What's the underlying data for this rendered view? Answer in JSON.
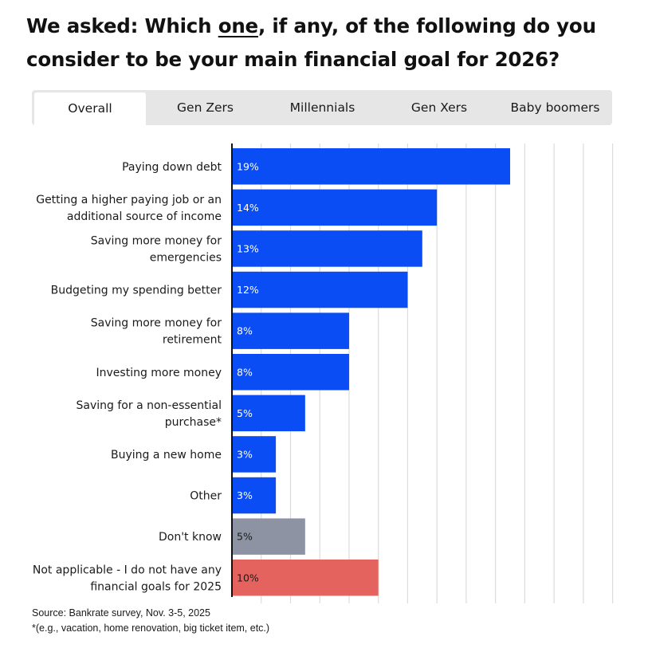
{
  "title": {
    "prefix": "We asked: Which ",
    "emphasis": "one",
    "suffix": ", if any, of the following do you consider to be your main financial goal for 2026?"
  },
  "tabs": [
    {
      "label": "Overall",
      "active": true
    },
    {
      "label": "Gen Zers",
      "active": false
    },
    {
      "label": "Millennials",
      "active": false
    },
    {
      "label": "Gen Xers",
      "active": false
    },
    {
      "label": "Baby boomers",
      "active": false
    }
  ],
  "chart_data": {
    "type": "bar",
    "orientation": "horizontal",
    "xlim": [
      0,
      26
    ],
    "gridlines": true,
    "series": [
      {
        "name": "Overall",
        "values": [
          19,
          14,
          13,
          12,
          8,
          8,
          5,
          3,
          3,
          5,
          10
        ],
        "value_labels": [
          "19%",
          "14%",
          "13%",
          "12%",
          "8%",
          "8%",
          "5%",
          "3%",
          "3%",
          "5%",
          "10%"
        ]
      }
    ],
    "categories": [
      [
        "Paying down debt"
      ],
      [
        "Getting a higher paying job or an",
        "additional source of income"
      ],
      [
        "Saving more money for",
        "emergencies"
      ],
      [
        "Budgeting my spending better"
      ],
      [
        "Saving more money for",
        "retirement"
      ],
      [
        "Investing more money"
      ],
      [
        "Saving for a non-essential",
        "purchase*"
      ],
      [
        "Buying a new home"
      ],
      [
        "Other"
      ],
      [
        "Don't know"
      ],
      [
        "Not applicable - I do not have any",
        "financial goals for 2025"
      ]
    ],
    "bar_colors": [
      "#0a4df5",
      "#0a4df5",
      "#0a4df5",
      "#0a4df5",
      "#0a4df5",
      "#0a4df5",
      "#0a4df5",
      "#0a4df5",
      "#0a4df5",
      "#8d93a3",
      "#e5635e"
    ],
    "label_colors": [
      "#ffffff",
      "#ffffff",
      "#ffffff",
      "#ffffff",
      "#ffffff",
      "#ffffff",
      "#ffffff",
      "#ffffff",
      "#ffffff",
      "#1a1a1a",
      "#1a1a1a"
    ]
  },
  "footer": {
    "source": "Source: Bankrate survey, Nov. 3-5, 2025",
    "note": "*(e.g., vacation, home renovation, big ticket item, etc.)"
  }
}
